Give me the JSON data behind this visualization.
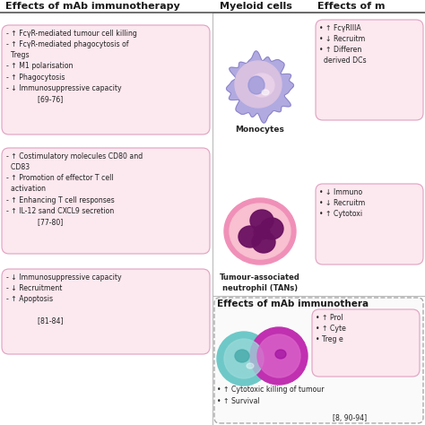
{
  "title_left": "Effects of mAb immunotherapy",
  "title_middle": "Myeloid cells",
  "title_right": "Effects of m",
  "title_bottom": "Effects of mAb immunothera",
  "box1_text": "- ↑ FcγR-mediated tumour cell killing\n- ↑ FcγR-mediated phagocytosis of\n  Tregs\n- ↑ M1 polarisation\n- ↑ Phagocytosis\n- ↓ Immunosuppressive capacity\n              [69-76]",
  "box2_text": "- ↑ Costimulatory molecules CD80 and\n  CD83\n- ↑ Promotion of effector T cell\n  activation\n- ↑ Enhancing T cell responses\n- ↑ IL-12 sand CXCL9 secretion\n              [77-80]",
  "box3_text": "- ↓ Immunosuppressive capacity\n- ↓ Recruitment\n- ↑ Apoptosis\n\n              [81-84]",
  "box4_text": "• ↑ FcγRIIIA\n• ↓ Recruitm\n• ↑ Differen\n  derived DCs",
  "box5_text": "• ↓ Immuno\n• ↓ Recruitm\n• ↑ Cytotoxi",
  "box6_text": "• ↑ Prol\n• ↑ Cyte\n• Treg e",
  "box6_bottom_text": "• ↑ Cytotoxic killing of tumour\n• ↑ Survival",
  "box6_ref": "[8, 90-94]",
  "monocyte_label": "Monocytes",
  "tan_label": "Tumour-associated\nneutrophil (TANs)",
  "bg_color": "#ffffff",
  "box_pink": "#fce8ef",
  "box_blue": "#ccedf5",
  "header_color": "#1a1a1a",
  "text_color": "#222222",
  "divider_color": "#cccccc",
  "border_color": "#e0a0c0",
  "border_color2": "#aaaaaa"
}
